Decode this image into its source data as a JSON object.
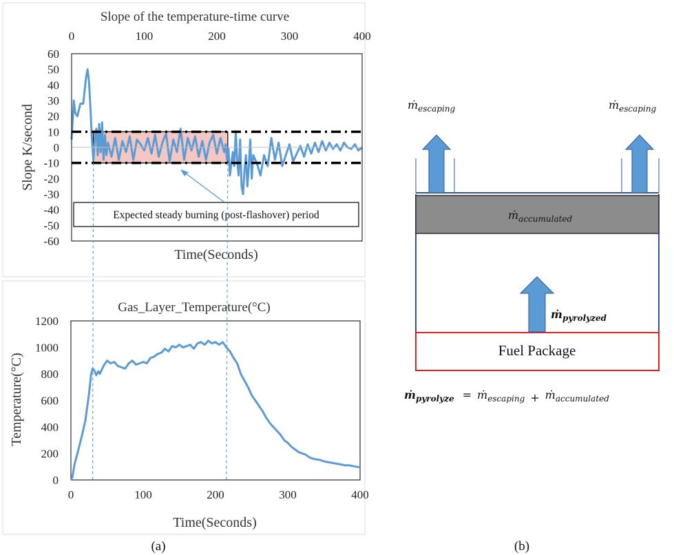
{
  "colors": {
    "series": "#5b9bd5",
    "steady_band_fill": "#f4c7c3",
    "threshold": "#000000",
    "arrow_fill": "#5b9bd5",
    "accumulated_fill": "#8c8c8c",
    "fuel_border": "#e02020",
    "box_border": "#2f5597"
  },
  "chart_data": [
    {
      "type": "line",
      "title": "Slope of the temperature-time curve",
      "xlabel": "Time(Seconds)",
      "ylabel": "Slope K/second",
      "x_axis_position": "top",
      "xlim": [
        0,
        400
      ],
      "ylim": [
        -60,
        60
      ],
      "x_ticks": [
        "0",
        "100",
        "200",
        "300",
        "400"
      ],
      "y_ticks": [
        "60",
        "50",
        "40",
        "30",
        "20",
        "10",
        "0",
        "-10",
        "-20",
        "-30",
        "-40",
        "-50",
        "-60"
      ],
      "grid": false,
      "thresholds": [
        10,
        -10
      ],
      "steady_band": {
        "x": [
          30,
          215
        ],
        "y": [
          -10,
          10
        ]
      },
      "annotation": "Expected steady burning (post-flashover) period",
      "series": [
        {
          "x": [
            0,
            3,
            5,
            8,
            12,
            16,
            20,
            22,
            24,
            26,
            28,
            30,
            32,
            34,
            36,
            38,
            40,
            42,
            44,
            46,
            48,
            50,
            55,
            60,
            65,
            70,
            75,
            80,
            85,
            90,
            95,
            100,
            105,
            110,
            115,
            120,
            125,
            130,
            135,
            140,
            145,
            150,
            155,
            160,
            165,
            170,
            175,
            180,
            185,
            190,
            195,
            200,
            205,
            210,
            212,
            214,
            216,
            218,
            220,
            222,
            224,
            226,
            228,
            230,
            232,
            234,
            236,
            238,
            240,
            242,
            244,
            246,
            248,
            250,
            255,
            260,
            265,
            270,
            275,
            280,
            285,
            290,
            295,
            300,
            305,
            310,
            315,
            320,
            325,
            330,
            335,
            340,
            345,
            350,
            355,
            360,
            365,
            370,
            375,
            380,
            385,
            390,
            395,
            400
          ],
          "y": [
            5,
            30,
            22,
            20,
            28,
            28,
            45,
            50,
            42,
            25,
            5,
            -8,
            5,
            12,
            -5,
            15,
            -3,
            16,
            -8,
            8,
            -5,
            3,
            -6,
            6,
            -8,
            4,
            -3,
            7,
            -8,
            5,
            2,
            -2,
            6,
            -4,
            8,
            -6,
            3,
            9,
            -9,
            5,
            -3,
            12,
            -8,
            6,
            -2,
            7,
            -6,
            4,
            -8,
            3,
            8,
            -4,
            6,
            -3,
            2,
            -8,
            -1,
            -18,
            -10,
            -3,
            -12,
            10,
            -8,
            -18,
            5,
            -25,
            -30,
            -15,
            -5,
            -25,
            -12,
            5,
            -20,
            -5,
            -10,
            -18,
            -5,
            -12,
            6,
            -8,
            3,
            -12,
            -5,
            2,
            -9,
            -4,
            1,
            -6,
            2,
            -4,
            3,
            -3,
            4,
            -2,
            3,
            -1,
            2,
            -2,
            3,
            0,
            -1,
            2,
            -2,
            0
          ]
        }
      ]
    },
    {
      "type": "line",
      "title": "Gas_Layer_Temperature(°C)",
      "xlabel": "Time(Seconds)",
      "ylabel": "Temperature(°C)",
      "xlim": [
        0,
        400
      ],
      "ylim": [
        0,
        1200
      ],
      "x_ticks": [
        "0",
        "100",
        "200",
        "300",
        "400"
      ],
      "y_ticks": [
        "1200",
        "1000",
        "800",
        "600",
        "400",
        "200",
        "0"
      ],
      "grid": false,
      "guide_lines_x": [
        30,
        215
      ],
      "series": [
        {
          "x": [
            0,
            2,
            5,
            10,
            15,
            20,
            25,
            28,
            30,
            32,
            35,
            38,
            40,
            45,
            50,
            55,
            60,
            65,
            70,
            75,
            80,
            85,
            90,
            95,
            100,
            105,
            110,
            115,
            120,
            125,
            130,
            135,
            140,
            145,
            150,
            155,
            160,
            165,
            170,
            175,
            180,
            185,
            190,
            195,
            200,
            205,
            210,
            215,
            220,
            225,
            230,
            235,
            240,
            245,
            250,
            255,
            260,
            265,
            270,
            275,
            280,
            285,
            290,
            295,
            300,
            305,
            310,
            315,
            320,
            325,
            330,
            335,
            340,
            345,
            350,
            355,
            360,
            365,
            370,
            375,
            380,
            385,
            390,
            395,
            400
          ],
          "y": [
            0,
            20,
            120,
            220,
            330,
            450,
            650,
            800,
            840,
            830,
            790,
            820,
            800,
            860,
            900,
            880,
            890,
            860,
            850,
            840,
            880,
            900,
            870,
            880,
            890,
            880,
            920,
            930,
            950,
            960,
            990,
            970,
            1010,
            1000,
            1020,
            1000,
            1010,
            1020,
            990,
            1030,
            1040,
            1020,
            1050,
            1030,
            1040,
            1020,
            1040,
            1000,
            970,
            920,
            880,
            800,
            750,
            700,
            640,
            600,
            560,
            520,
            470,
            430,
            400,
            370,
            340,
            300,
            280,
            250,
            230,
            210,
            200,
            190,
            170,
            160,
            155,
            150,
            140,
            135,
            130,
            125,
            120,
            115,
            110,
            110,
            105,
            100,
            95
          ]
        }
      ]
    }
  ],
  "diagram": {
    "escaping_left": {
      "sym": "ṁ",
      "sub": "escaping"
    },
    "escaping_right": {
      "sym": "ṁ",
      "sub": "escaping"
    },
    "accumulated": {
      "sym": "ṁ",
      "sub": "accumulated"
    },
    "pyrolyzed": {
      "sym": "ṁ",
      "sub": "pyrolyzed"
    },
    "fuel_package": "Fuel Package",
    "equation": {
      "lhs_sym": "ṁ",
      "lhs_sub": "pyrolyze",
      "eq": "=",
      "t1_sym": "ṁ",
      "t1_sub": "escaping",
      "plus": "+",
      "t2_sym": "ṁ",
      "t2_sub": "accumulated"
    }
  },
  "labels": {
    "a": "(a)",
    "b": "(b)"
  }
}
